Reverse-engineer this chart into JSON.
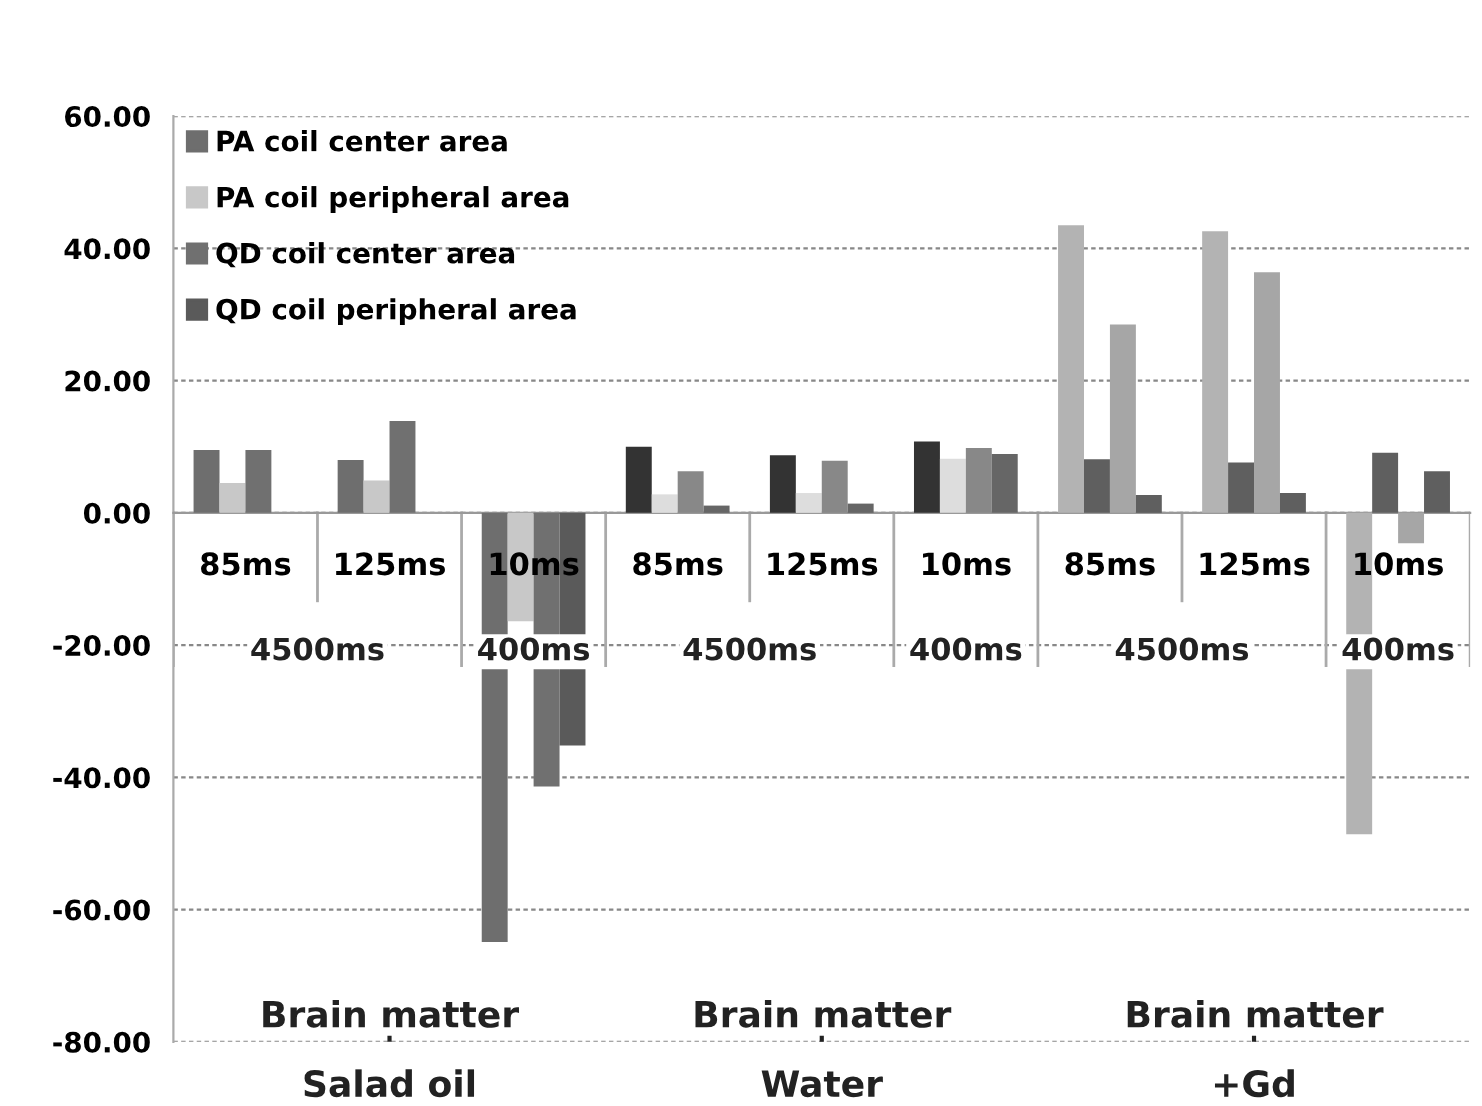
{
  "chart_data": {
    "type": "bar",
    "categories": [
      "85ms",
      "125ms",
      "10ms",
      "85ms",
      "125ms",
      "10ms",
      "85ms",
      "125ms",
      "10ms"
    ],
    "ylim": [
      -80,
      60
    ],
    "yticks": [
      {
        "value": -80,
        "label": "-80.00"
      },
      {
        "value": -60,
        "label": "-60.00"
      },
      {
        "value": -40,
        "label": "-40.00"
      },
      {
        "value": -20,
        "label": "-20.00"
      },
      {
        "value": 0,
        "label": "0.00"
      },
      {
        "value": 20,
        "label": "20.00"
      },
      {
        "value": 40,
        "label": "40.00"
      },
      {
        "value": 60,
        "label": "60.00"
      }
    ],
    "grid": "y",
    "legend": "top left",
    "annotations": [
      "4500ms",
      "400ms",
      "Brain matter",
      "Salad oil",
      "4500ms",
      "400ms",
      "Brain matter",
      "Water",
      "4500ms",
      "400ms",
      "Brain matter",
      "+Gd"
    ],
    "series": [
      {
        "name": "PA coil center area",
        "color": "#6e6e6e",
        "colors": [
          "#6e6e6e",
          "#6e6e6e",
          "#6e6e6e",
          "#333333",
          "#333333",
          "#333333",
          "#b3b3b3",
          "#b3b3b3",
          "#b3b3b3"
        ],
        "values": [
          9.5,
          8.0,
          -64.9,
          10.0,
          8.7,
          10.8,
          43.5,
          42.6,
          -48.6
        ]
      },
      {
        "name": "PA coil peripheral area",
        "color": "#c8c8c8",
        "colors": [
          "#c8c8c8",
          "#c8c8c8",
          "#c8c8c8",
          "#dddddd",
          "#dddddd",
          "#dddddd",
          "#5f5f5f",
          "#5f5f5f",
          "#5f5f5f"
        ],
        "values": [
          4.5,
          4.9,
          -16.4,
          2.8,
          3.0,
          8.2,
          8.1,
          7.6,
          9.1
        ]
      },
      {
        "name": "QD coil center area",
        "color": "#707070",
        "colors": [
          "#707070",
          "#707070",
          "#707070",
          "#888888",
          "#888888",
          "#888888",
          "#a6a6a6",
          "#a6a6a6",
          "#a6a6a6"
        ],
        "values": [
          9.5,
          13.9,
          -41.4,
          6.3,
          7.9,
          9.8,
          28.5,
          36.4,
          -4.6
        ]
      },
      {
        "name": "QD coil peripheral area",
        "color": "#5a5a5a",
        "colors": [
          "#5a5a5a",
          "#5a5a5a",
          "#5a5a5a",
          "#666666",
          "#666666",
          "#666666",
          "#5f5f5f",
          "#5f5f5f",
          "#5f5f5f"
        ],
        "values": [
          null,
          null,
          -35.2,
          1.1,
          1.4,
          8.9,
          2.7,
          3.0,
          6.3
        ]
      }
    ]
  }
}
